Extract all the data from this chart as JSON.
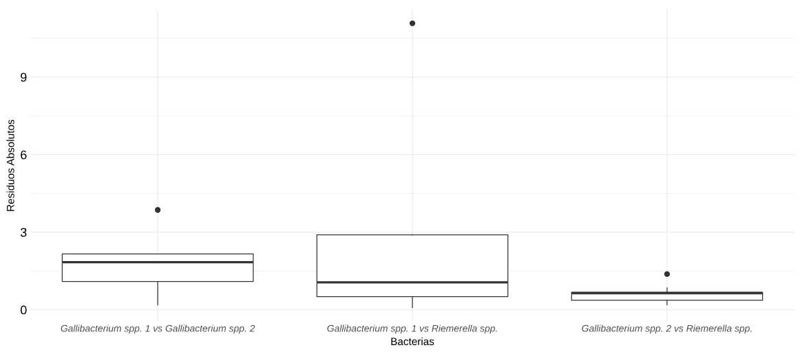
{
  "chart_data": {
    "type": "box",
    "xlabel": "Bacterias",
    "ylabel": "Residuos Absolutos",
    "categories": [
      "Gallibacterium spp. 1 vs Gallibacterium spp. 2",
      "Gallibacterium spp. 1 vs Riemerella spp.",
      "Gallibacterium spp. 2 vs Riemerella spp."
    ],
    "boxes": [
      {
        "low": 0.19,
        "q1": 1.09,
        "median": 1.84,
        "q3": 2.16,
        "high": 2.16,
        "outliers": [
          3.86
        ]
      },
      {
        "low": 0.08,
        "q1": 0.51,
        "median": 1.06,
        "q3": 2.9,
        "high": 2.9,
        "outliers": [
          11.08
        ]
      },
      {
        "low": 0.19,
        "q1": 0.37,
        "median": 0.64,
        "q3": 0.68,
        "high": 0.85,
        "outliers": [
          1.38
        ]
      }
    ],
    "ylim": [
      -0.45,
      11.6
    ],
    "yticks": [
      0,
      3,
      6,
      9
    ],
    "grid": true
  }
}
